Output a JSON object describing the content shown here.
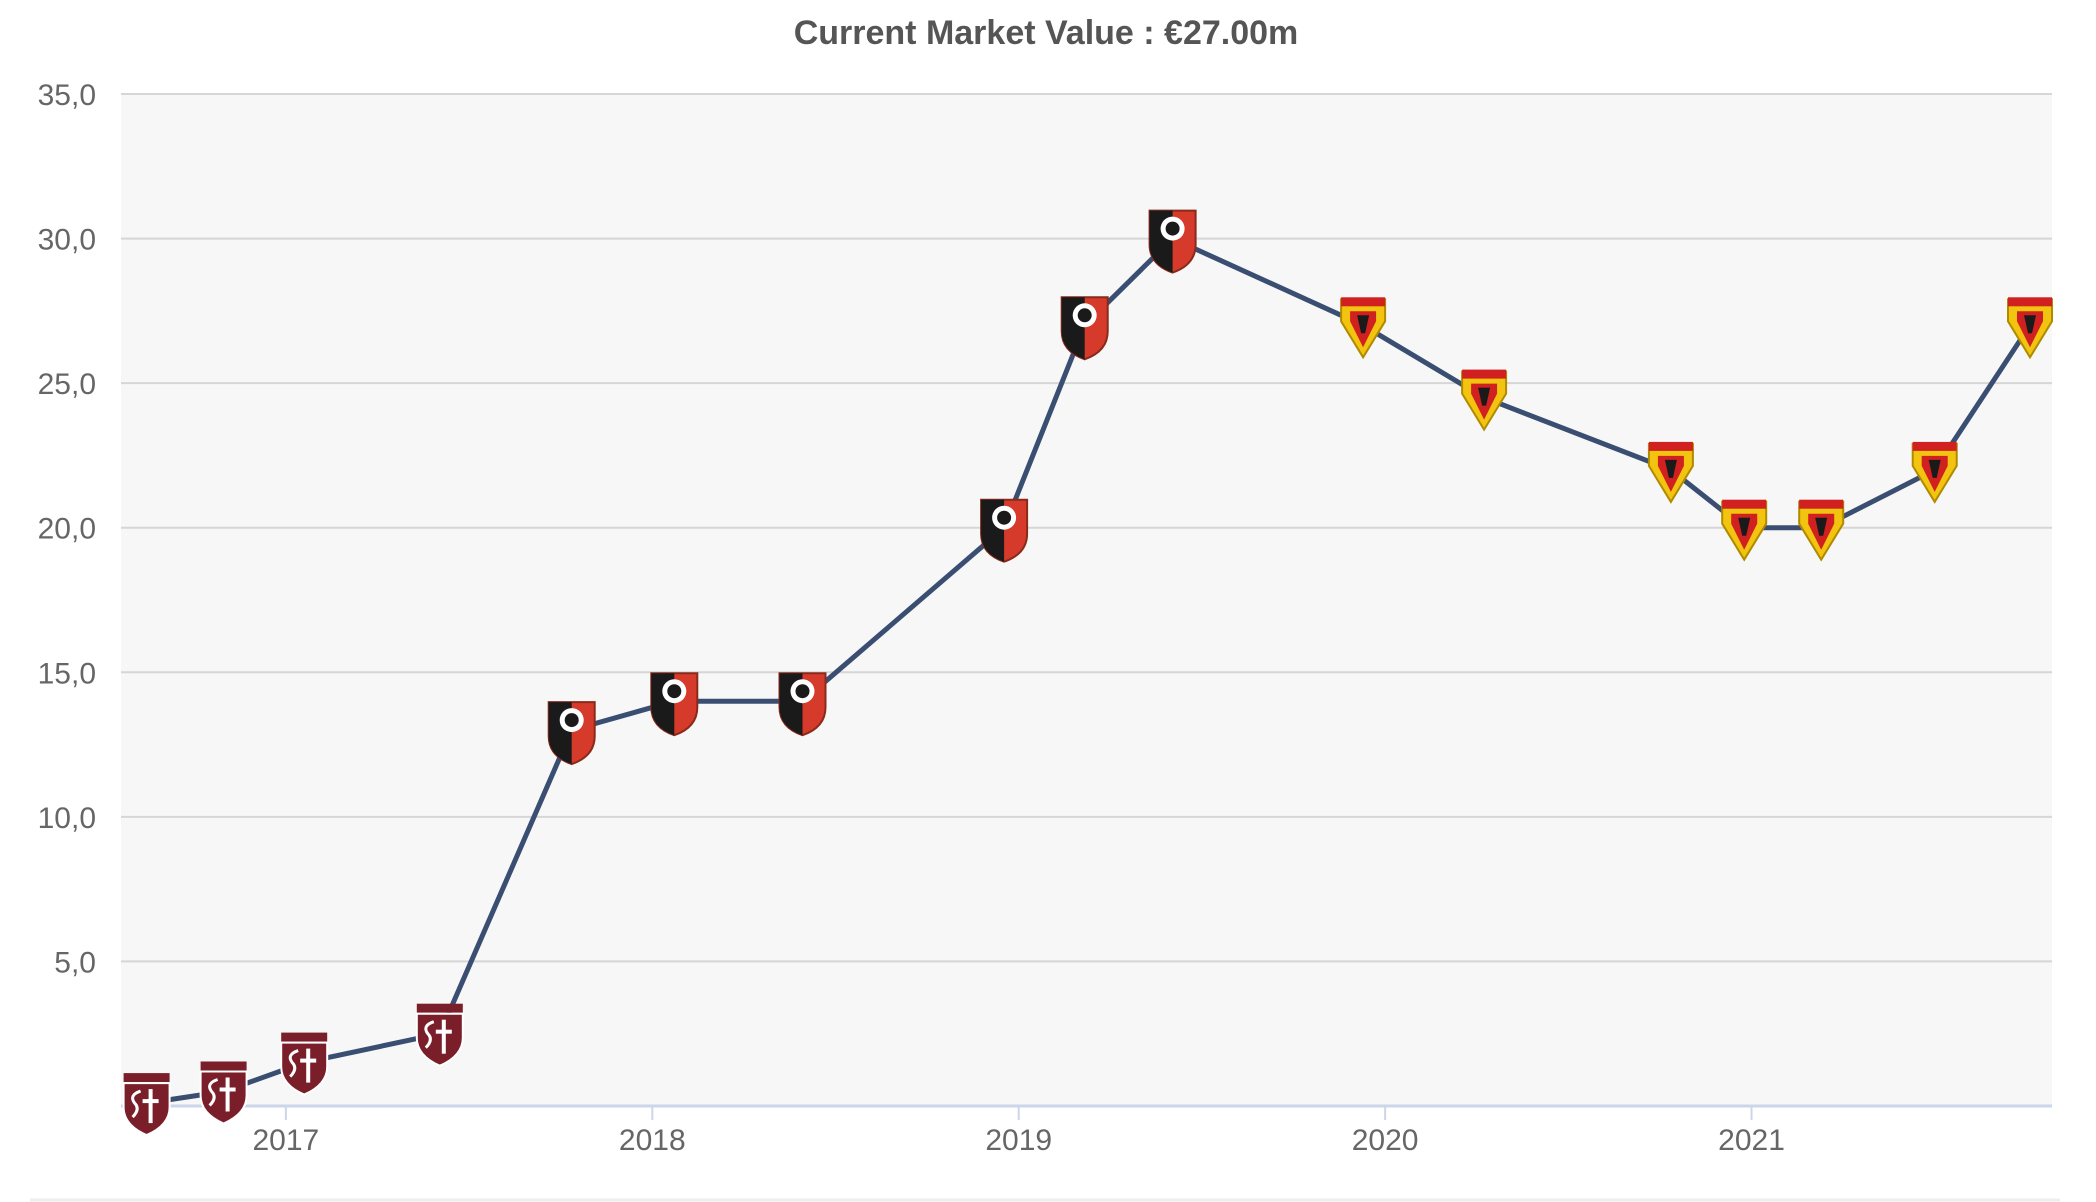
{
  "colors": {
    "plot_background": "#f7f7f7",
    "gridline": "#d6d6d6",
    "axis_line": "#ccd6eb",
    "series_line": "#3a4e72",
    "title_text": "#555555",
    "tick_text": "#666666",
    "metz_crest": "#7a1e2a",
    "rennes_black": "#1a1a1a",
    "rennes_red": "#d63a2a",
    "watford_yellow": "#f2c40f",
    "watford_red": "#d02020",
    "footer_rule": "#eeeeee"
  },
  "chart_data": {
    "type": "line",
    "title": "Current Market Value : €27.00m",
    "xlabel": "",
    "ylabel": "",
    "xlim": [
      2016.55,
      2021.82
    ],
    "ylim": [
      0,
      35
    ],
    "grid": true,
    "yticks": [
      {
        "value": 5,
        "label": "5,0"
      },
      {
        "value": 10,
        "label": "10,0"
      },
      {
        "value": 15,
        "label": "15,0"
      },
      {
        "value": 20,
        "label": "20,0"
      },
      {
        "value": 25,
        "label": "25,0"
      },
      {
        "value": 30,
        "label": "30,0"
      },
      {
        "value": 35,
        "label": "35,0"
      }
    ],
    "xticks": [
      {
        "value": 2017,
        "label": "2017"
      },
      {
        "value": 2018,
        "label": "2018"
      },
      {
        "value": 2019,
        "label": "2019"
      },
      {
        "value": 2020,
        "label": "2020"
      },
      {
        "value": 2021,
        "label": "2021"
      }
    ],
    "series": [
      {
        "name": "Market value",
        "points": [
          {
            "x": 2016.62,
            "y": 0.1,
            "club": "metz"
          },
          {
            "x": 2016.83,
            "y": 0.5,
            "club": "metz"
          },
          {
            "x": 2017.05,
            "y": 1.5,
            "club": "metz"
          },
          {
            "x": 2017.42,
            "y": 2.5,
            "club": "metz"
          },
          {
            "x": 2017.78,
            "y": 13.0,
            "club": "rennes"
          },
          {
            "x": 2018.06,
            "y": 14.0,
            "club": "rennes"
          },
          {
            "x": 2018.41,
            "y": 14.0,
            "club": "rennes"
          },
          {
            "x": 2018.96,
            "y": 20.0,
            "club": "rennes"
          },
          {
            "x": 2019.18,
            "y": 27.0,
            "club": "rennes"
          },
          {
            "x": 2019.42,
            "y": 30.0,
            "club": "rennes"
          },
          {
            "x": 2019.94,
            "y": 27.0,
            "club": "watford"
          },
          {
            "x": 2020.27,
            "y": 24.5,
            "club": "watford"
          },
          {
            "x": 2020.78,
            "y": 22.0,
            "club": "watford"
          },
          {
            "x": 2020.98,
            "y": 20.0,
            "club": "watford"
          },
          {
            "x": 2021.19,
            "y": 20.0,
            "club": "watford"
          },
          {
            "x": 2021.5,
            "y": 22.0,
            "club": "watford"
          },
          {
            "x": 2021.76,
            "y": 27.0,
            "club": "watford"
          }
        ]
      }
    ]
  }
}
